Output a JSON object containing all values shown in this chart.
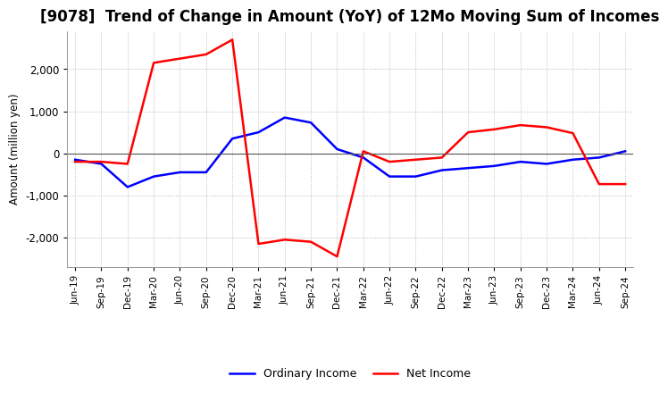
{
  "title": "[9078]  Trend of Change in Amount (YoY) of 12Mo Moving Sum of Incomes",
  "ylabel": "Amount (million yen)",
  "x_labels": [
    "Jun-19",
    "Sep-19",
    "Dec-19",
    "Mar-20",
    "Jun-20",
    "Sep-20",
    "Dec-20",
    "Mar-21",
    "Jun-21",
    "Sep-21",
    "Dec-21",
    "Mar-22",
    "Jun-22",
    "Sep-22",
    "Dec-22",
    "Mar-23",
    "Jun-23",
    "Sep-23",
    "Dec-23",
    "Mar-24",
    "Jun-24",
    "Sep-24"
  ],
  "ordinary_income": [
    -150,
    -250,
    -800,
    -550,
    -450,
    -450,
    350,
    500,
    850,
    730,
    100,
    -100,
    -550,
    -550,
    -400,
    -350,
    -300,
    -200,
    -250,
    -150,
    -100,
    50
  ],
  "net_income": [
    -200,
    -200,
    -250,
    2150,
    2250,
    2350,
    2700,
    -2150,
    -2050,
    -2100,
    -2450,
    50,
    -200,
    -150,
    -100,
    500,
    570,
    670,
    620,
    480,
    -730,
    -730
  ],
  "ordinary_color": "#0000ff",
  "net_color": "#ff0000",
  "line_width": 1.8,
  "ylim": [
    -2700,
    2900
  ],
  "yticks": [
    -2000,
    -1000,
    0,
    1000,
    2000
  ],
  "background_color": "#ffffff",
  "grid_color": "#b0b0b0",
  "title_fontsize": 12,
  "legend_labels": [
    "Ordinary Income",
    "Net Income"
  ]
}
